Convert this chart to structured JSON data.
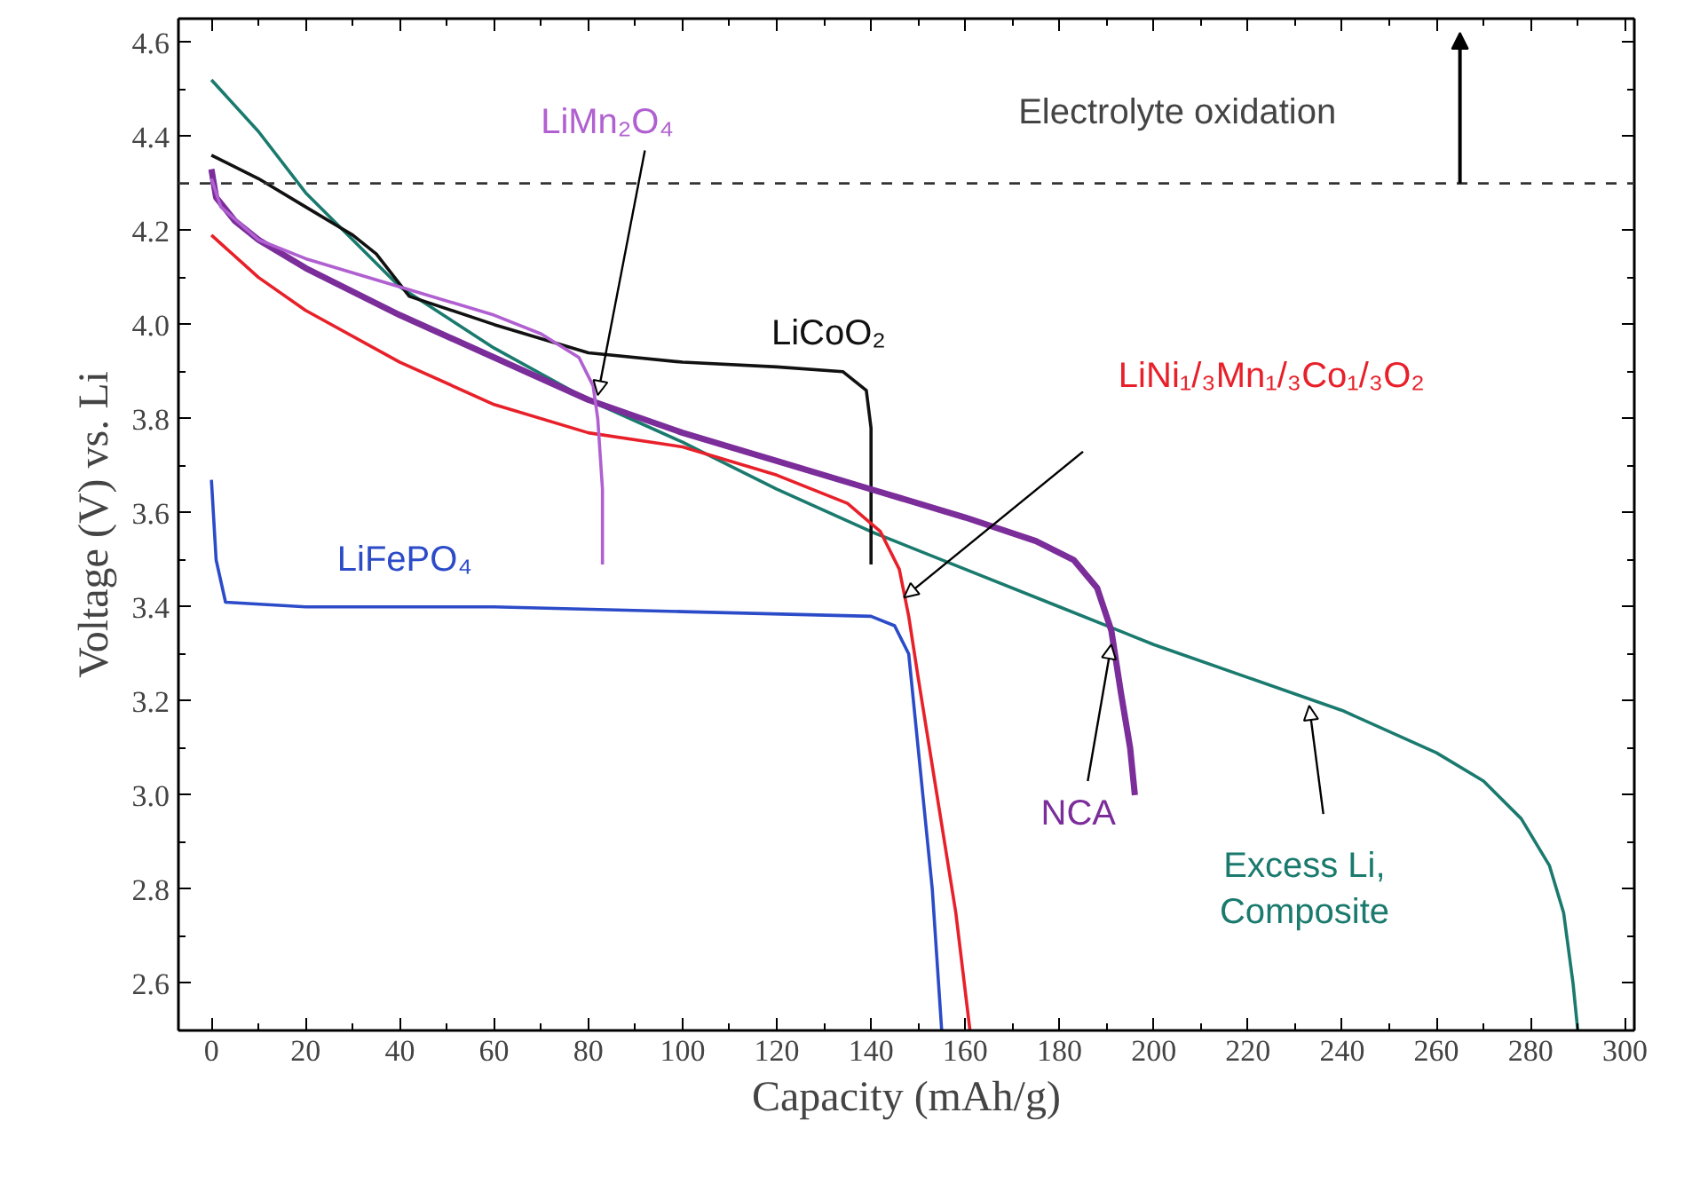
{
  "chart_data": {
    "type": "line",
    "xlabel": "Capacity (mAh/g)",
    "ylabel": "Voltage (V) vs. Li",
    "xlim": [
      -7,
      302
    ],
    "ylim": [
      2.5,
      4.65
    ],
    "xticks": [
      0,
      20,
      40,
      60,
      80,
      100,
      120,
      140,
      160,
      180,
      200,
      220,
      240,
      260,
      280,
      300
    ],
    "yticks": [
      2.6,
      2.8,
      {
        "value": 3,
        "label": "3.0"
      },
      3.2,
      3.4,
      3.6,
      3.8,
      {
        "value": 4,
        "label": "4.0"
      },
      4.2,
      4.4,
      4.6
    ],
    "grid": false,
    "marker": "none",
    "line_style": "solid",
    "ref_lines": [
      {
        "axis": "y",
        "value": 4.3,
        "label": "Electrolyte oxidation",
        "line_style": "dashed",
        "color": "#333333"
      }
    ],
    "series": [
      {
        "name": "Excess Li,\nComposite",
        "color": "#1a7a6e",
        "x": [
          0,
          10,
          20,
          40,
          60,
          80,
          100,
          120,
          140,
          160,
          180,
          200,
          220,
          240,
          260,
          270,
          278,
          284,
          287,
          289,
          290
        ],
        "values": [
          4.52,
          4.41,
          4.28,
          4.08,
          3.95,
          3.84,
          3.75,
          3.65,
          3.56,
          3.48,
          3.4,
          3.32,
          3.25,
          3.18,
          3.09,
          3.03,
          2.95,
          2.85,
          2.75,
          2.6,
          2.5
        ]
      },
      {
        "name": "LiCoO₂",
        "color": "#111111",
        "x": [
          0,
          10,
          20,
          30,
          35,
          42,
          60,
          80,
          100,
          120,
          134,
          139,
          140,
          140
        ],
        "values": [
          4.36,
          4.31,
          4.25,
          4.19,
          4.15,
          4.06,
          4.0,
          3.94,
          3.92,
          3.91,
          3.9,
          3.86,
          3.78,
          3.49
        ]
      },
      {
        "name": "LiNi₁/₃Mn₁/₃Co₁/₃O₂",
        "color": "#e8202a",
        "x": [
          0,
          10,
          20,
          40,
          60,
          80,
          100,
          120,
          135,
          142,
          146,
          148,
          150,
          154,
          158,
          161
        ],
        "values": [
          4.19,
          4.1,
          4.03,
          3.92,
          3.83,
          3.77,
          3.74,
          3.68,
          3.62,
          3.56,
          3.48,
          3.38,
          3.25,
          3.0,
          2.75,
          2.5
        ]
      },
      {
        "name": "LiFePO₄",
        "color": "#2b4bc8",
        "x": [
          0,
          1,
          3,
          20,
          60,
          100,
          140,
          145,
          148,
          150,
          153,
          155
        ],
        "values": [
          3.67,
          3.5,
          3.41,
          3.4,
          3.4,
          3.39,
          3.38,
          3.36,
          3.3,
          3.1,
          2.8,
          2.5
        ]
      },
      {
        "name": "NCA",
        "color": "#7b2d9a",
        "x": [
          0,
          1,
          5,
          10,
          20,
          40,
          60,
          80,
          100,
          120,
          140,
          160,
          175,
          183,
          188,
          191,
          193,
          195,
          196
        ],
        "values": [
          4.33,
          4.27,
          4.22,
          4.18,
          4.12,
          4.02,
          3.93,
          3.84,
          3.77,
          3.71,
          3.65,
          3.59,
          3.54,
          3.5,
          3.44,
          3.35,
          3.22,
          3.1,
          3.0
        ]
      },
      {
        "name": "LiMn₂O₄",
        "color": "#b060d0",
        "x": [
          0,
          2,
          10,
          20,
          40,
          60,
          70,
          78,
          81,
          82,
          83,
          83
        ],
        "values": [
          4.31,
          4.25,
          4.18,
          4.14,
          4.08,
          4.02,
          3.98,
          3.93,
          3.87,
          3.8,
          3.65,
          3.49
        ]
      }
    ]
  }
}
